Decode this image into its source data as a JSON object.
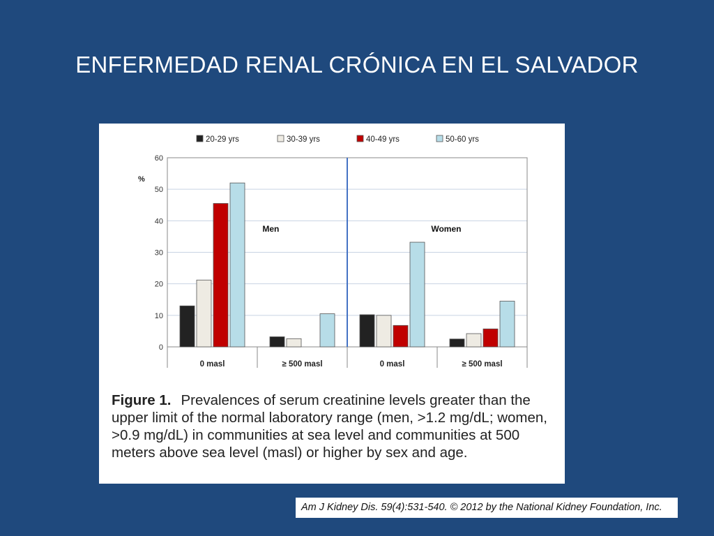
{
  "slide": {
    "title": "ENFERMEDAD RENAL CRÓNICA EN EL SALVADOR"
  },
  "figure": {
    "caption_label": "Figure 1.",
    "caption_text": "Prevalences of serum creatinine levels greater than the upper limit of the normal laboratory range (men, >1.2 mg/dL; women, >0.9 mg/dL) in communities at sea level and communities at 500 meters above sea level (masl) or higher by sex and age."
  },
  "citation": "Am J Kidney Dis. 59(4):531-540. © 2012 by the National Kidney Foundation, Inc.",
  "chart_data": {
    "type": "bar",
    "ylabel": "%",
    "ylim": [
      0,
      60
    ],
    "yticks": [
      0,
      10,
      20,
      30,
      40,
      50,
      60
    ],
    "grid": true,
    "legend_position": "top",
    "panels": [
      "Men",
      "Women"
    ],
    "categories": [
      "0 masl",
      "≥ 500 masl",
      "0 masl",
      "≥ 500 masl"
    ],
    "series": [
      {
        "name": "20-29 yrs",
        "color": "#222222",
        "values": [
          13,
          3.2,
          10.2,
          2.5
        ]
      },
      {
        "name": "30-39 yrs",
        "color": "#eeebe3",
        "values": [
          21.2,
          2.6,
          10,
          4.2
        ]
      },
      {
        "name": "40-49 yrs",
        "color": "#c00000",
        "values": [
          45.5,
          0,
          6.8,
          5.7
        ]
      },
      {
        "name": "50-60 yrs",
        "color": "#b7dde8",
        "values": [
          52,
          10.5,
          33.2,
          14.5
        ]
      }
    ]
  }
}
